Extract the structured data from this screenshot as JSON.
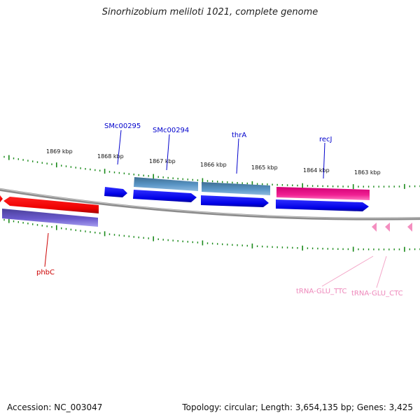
{
  "title": "Sinorhizobium meliloti 1021, complete genome",
  "footer": {
    "accession": "Accession: NC_003047",
    "topology": "Topology: circular; Length: 3,654,135 bp; Genes: 3,425"
  },
  "colors": {
    "backbone": "#888888",
    "tick": "#1a8a1a",
    "label_gene": "#0000cc",
    "label_red": "#cc0000",
    "label_trna": "#ee88bb",
    "cds_blue": "#0000ee",
    "cds_steel": "#4f8ab8",
    "cds_red": "#ee0000",
    "cds_purple": "#6a5acd",
    "cds_magenta": "#ee1f90"
  },
  "kbp_labels": [
    "1869 kbp",
    "1868 kbp",
    "1867 kbp",
    "1866 kbp",
    "1865 kbp",
    "1864 kbp",
    "1863 kbp"
  ],
  "gene_labels": [
    "SMc00295",
    "SMc00294",
    "thrA",
    "recJ",
    "phbC",
    "tRNA-GLU_TTC",
    "tRNA-GLU_CTC"
  ]
}
